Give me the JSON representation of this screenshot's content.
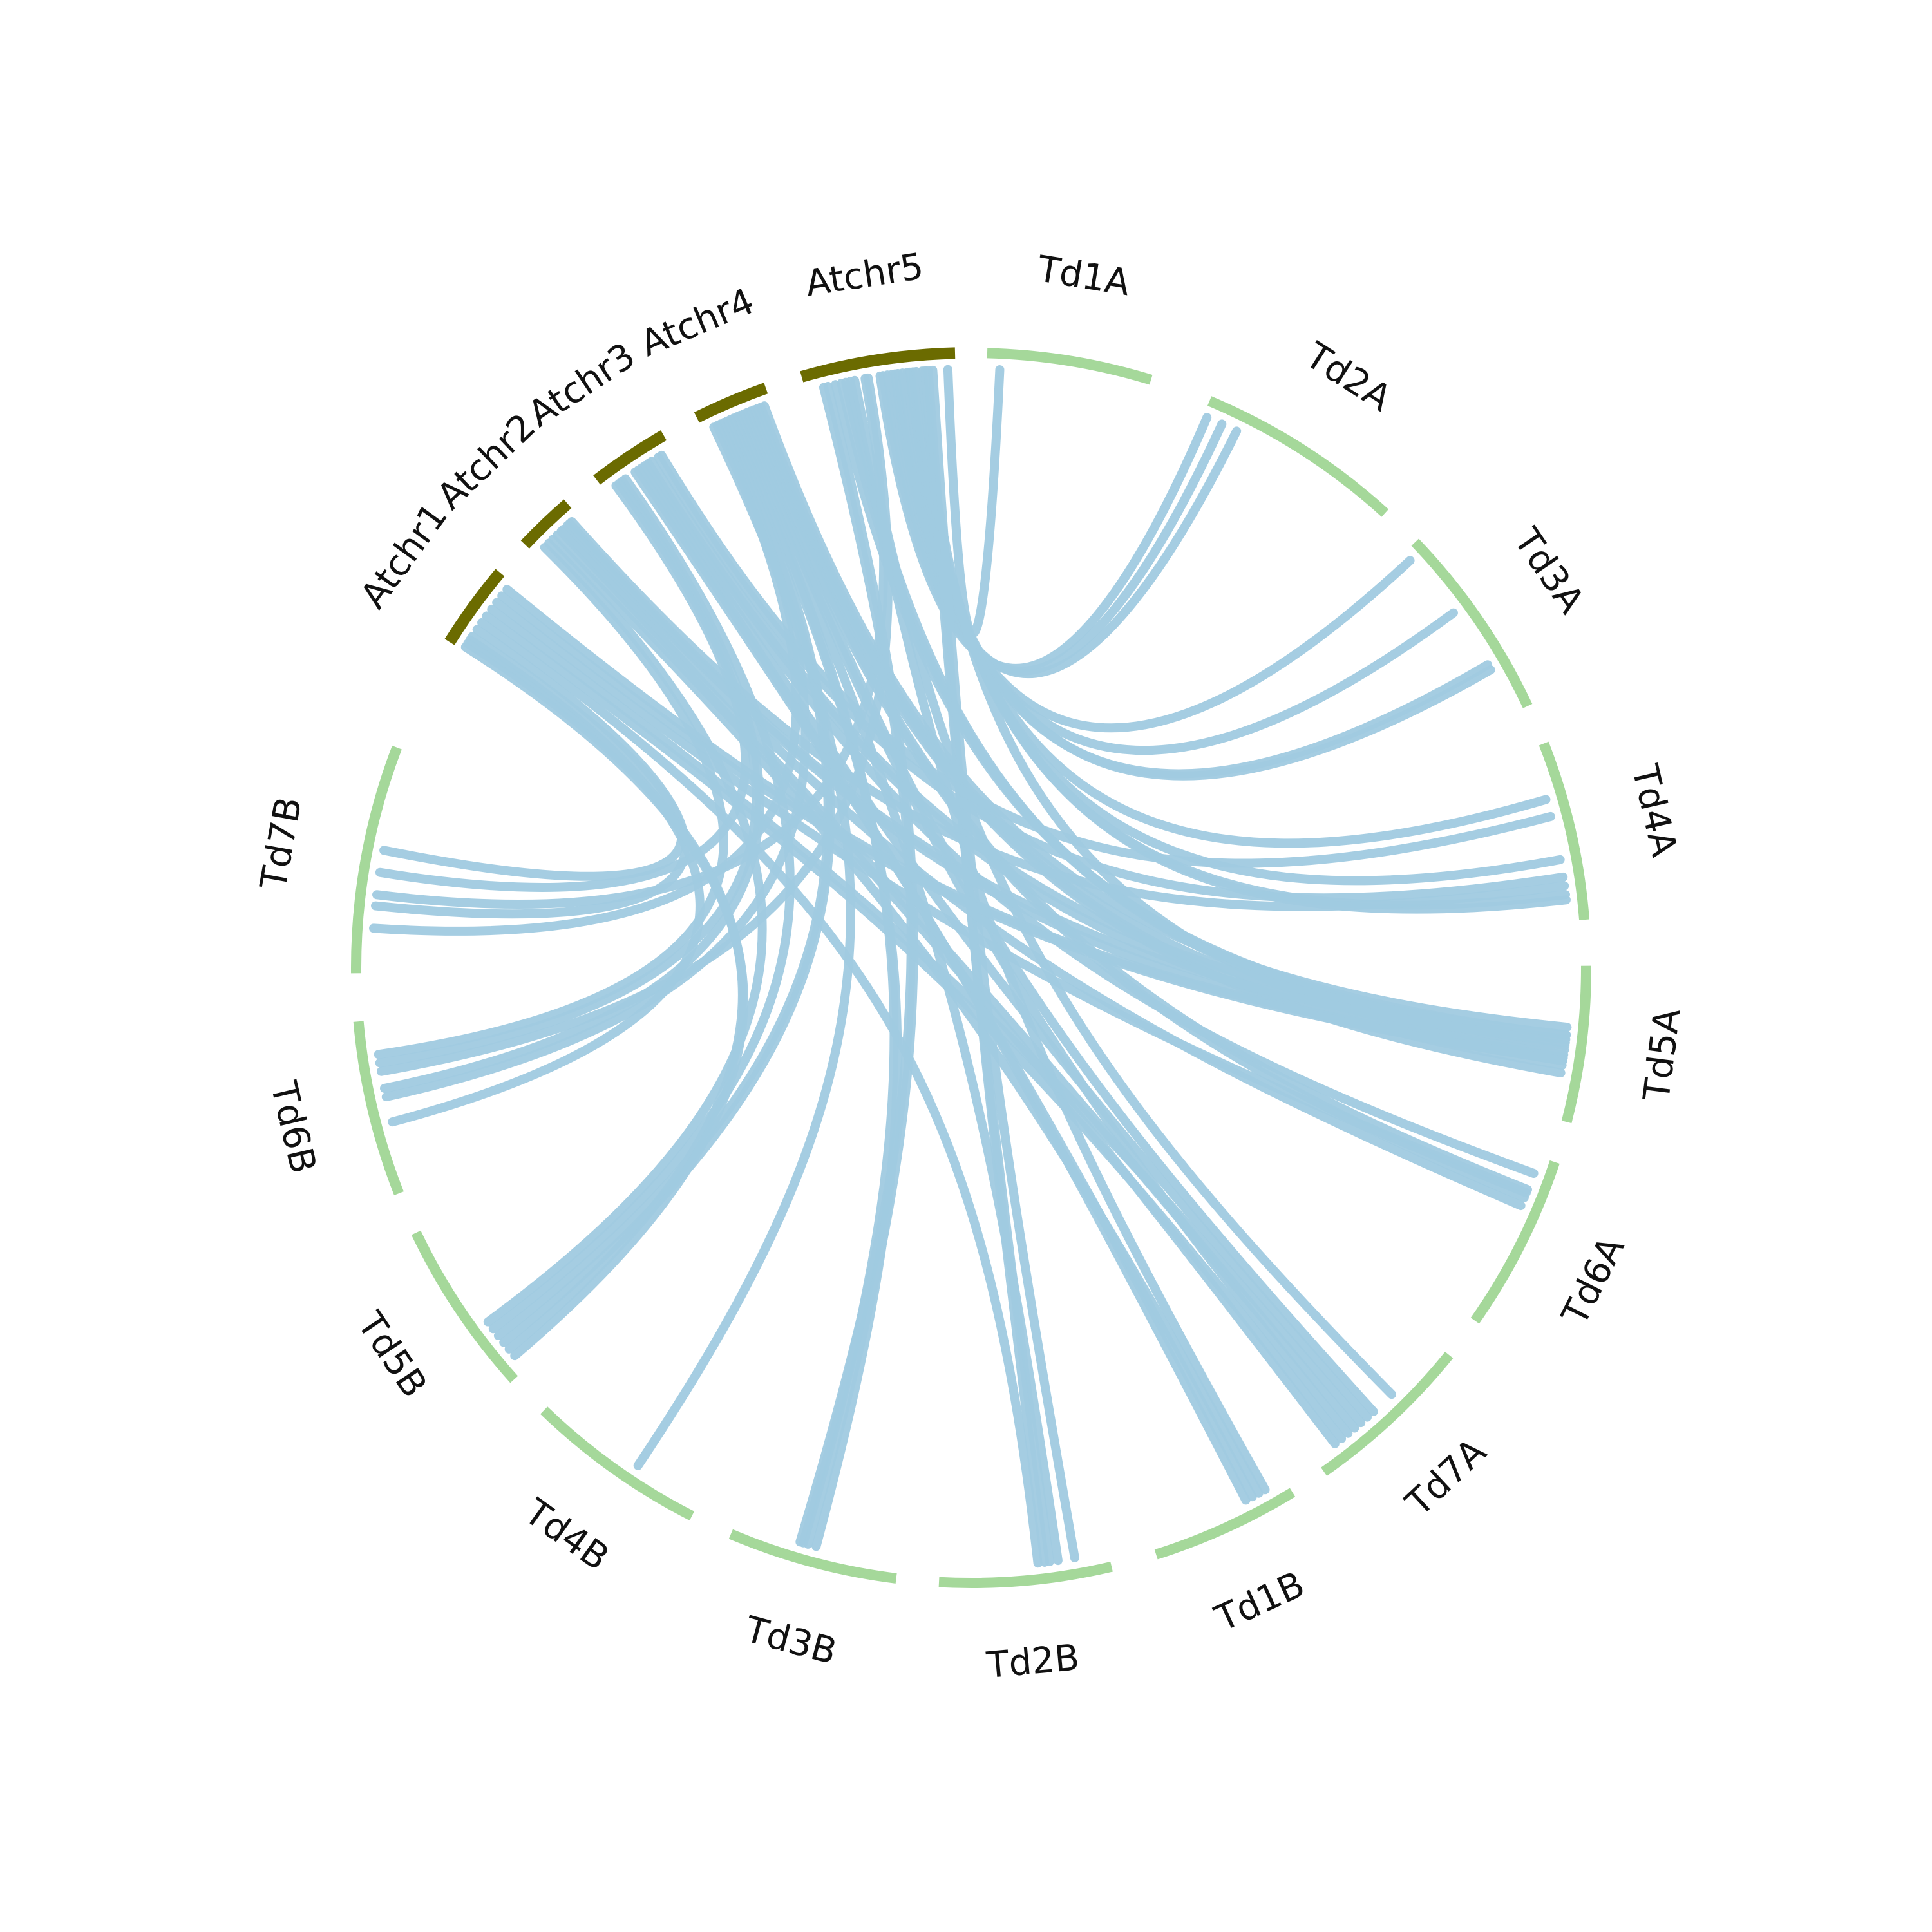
{
  "diagram": {
    "type": "circos",
    "colors": {
      "arabidopsis": "#6b6b00",
      "durum_wheat": "#a5d89a",
      "link": "#a0cae0",
      "label": "#111111",
      "background": "#ffffff"
    },
    "segments": [
      {
        "label": "Td1A",
        "group": "durum_wheat"
      },
      {
        "label": "Td2A",
        "group": "durum_wheat"
      },
      {
        "label": "Td3A",
        "group": "durum_wheat"
      },
      {
        "label": "Td4A",
        "group": "durum_wheat"
      },
      {
        "label": "Td5A",
        "group": "durum_wheat"
      },
      {
        "label": "Td6A",
        "group": "durum_wheat"
      },
      {
        "label": "Td7A",
        "group": "durum_wheat"
      },
      {
        "label": "Td1B",
        "group": "durum_wheat"
      },
      {
        "label": "Td2B",
        "group": "durum_wheat"
      },
      {
        "label": "Td3B",
        "group": "durum_wheat"
      },
      {
        "label": "Td4B",
        "group": "durum_wheat"
      },
      {
        "label": "Td5B",
        "group": "durum_wheat"
      },
      {
        "label": "Td6B",
        "group": "durum_wheat"
      },
      {
        "label": "Td7B",
        "group": "durum_wheat"
      },
      {
        "label": "Atchr1",
        "group": "arabidopsis"
      },
      {
        "label": "Atchr2",
        "group": "arabidopsis"
      },
      {
        "label": "Atchr3",
        "group": "arabidopsis"
      },
      {
        "label": "Atchr4",
        "group": "arabidopsis"
      },
      {
        "label": "Atchr5",
        "group": "arabidopsis"
      }
    ],
    "links": [
      {
        "from": "Atchr5",
        "fp": 0.95,
        "to": "Td1A",
        "tp": 0.08
      },
      {
        "from": "Atchr5",
        "fp": 0.5,
        "to": "Td2A",
        "tp": 0.02
      },
      {
        "from": "Atchr5",
        "fp": 0.52,
        "to": "Td2A",
        "tp": 0.1
      },
      {
        "from": "Atchr5",
        "fp": 0.55,
        "to": "Td2A",
        "tp": 0.18
      },
      {
        "from": "Atchr5",
        "fp": 0.58,
        "to": "Td3A",
        "tp": 0.05
      },
      {
        "from": "Atchr5",
        "fp": 0.6,
        "to": "Td3A",
        "tp": 0.4
      },
      {
        "from": "Atchr5",
        "fp": 0.62,
        "to": "Td3A",
        "tp": 0.72
      },
      {
        "from": "Atchr5",
        "fp": 0.65,
        "to": "Td3A",
        "tp": 0.75
      },
      {
        "from": "Atchr5",
        "fp": 0.68,
        "to": "Td4A",
        "tp": 0.3
      },
      {
        "from": "Atchr5",
        "fp": 0.7,
        "to": "Td4A",
        "tp": 0.65
      },
      {
        "from": "Atchr5",
        "fp": 0.72,
        "to": "Td4A",
        "tp": 0.85
      },
      {
        "from": "Atchr5",
        "fp": 0.74,
        "to": "Td4A",
        "tp": 0.88
      },
      {
        "from": "Atchr5",
        "fp": 0.2,
        "to": "Td5A",
        "tp": 0.45
      },
      {
        "from": "Atchr5",
        "fp": 0.24,
        "to": "Td5A",
        "tp": 0.48
      },
      {
        "from": "Atchr5",
        "fp": 0.27,
        "to": "Td5A",
        "tp": 0.52
      },
      {
        "from": "Atchr5",
        "fp": 0.78,
        "to": "Td5A",
        "tp": 0.6
      },
      {
        "from": "Atchr5",
        "fp": 0.8,
        "to": "Td2B",
        "tp": 0.35
      },
      {
        "from": "Atchr5",
        "fp": 0.82,
        "to": "Td2B",
        "tp": 0.38
      },
      {
        "from": "Atchr5",
        "fp": 0.85,
        "to": "Td2B",
        "tp": 0.2
      },
      {
        "from": "Atchr5",
        "fp": 0.3,
        "to": "Td1B",
        "tp": 0.15
      },
      {
        "from": "Atchr5",
        "fp": 0.33,
        "to": "Td7A",
        "tp": 0.4
      },
      {
        "from": "Atchr5",
        "fp": 0.15,
        "to": "Td3B",
        "tp": 0.55
      },
      {
        "from": "Atchr5",
        "fp": 0.12,
        "to": "Td3B",
        "tp": 0.6
      },
      {
        "from": "Atchr5",
        "fp": 0.4,
        "to": "Td7B",
        "tp": 0.35
      },
      {
        "from": "Atchr5",
        "fp": 0.42,
        "to": "Td6B",
        "tp": 0.7
      },
      {
        "from": "Atchr4",
        "fp": 0.9,
        "to": "Td5A",
        "tp": 0.4
      },
      {
        "from": "Atchr4",
        "fp": 0.85,
        "to": "Td5A",
        "tp": 0.55
      },
      {
        "from": "Atchr4",
        "fp": 0.8,
        "to": "Td5A",
        "tp": 0.65
      },
      {
        "from": "Atchr4",
        "fp": 0.75,
        "to": "Td5A",
        "tp": 0.7
      },
      {
        "from": "Atchr4",
        "fp": 0.7,
        "to": "Td6A",
        "tp": 0.2
      },
      {
        "from": "Atchr4",
        "fp": 0.65,
        "to": "Td6A",
        "tp": 0.25
      },
      {
        "from": "Atchr4",
        "fp": 0.6,
        "to": "Td7A",
        "tp": 0.55
      },
      {
        "from": "Atchr4",
        "fp": 0.55,
        "to": "Td7A",
        "tp": 0.75
      },
      {
        "from": "Atchr4",
        "fp": 0.5,
        "to": "Td2B",
        "tp": 0.3
      },
      {
        "from": "Atchr4",
        "fp": 0.45,
        "to": "Td3B",
        "tp": 0.58
      },
      {
        "from": "Atchr4",
        "fp": 0.4,
        "to": "Td3B",
        "tp": 0.5
      },
      {
        "from": "Atchr4",
        "fp": 0.35,
        "to": "Td5B",
        "tp": 0.2
      },
      {
        "from": "Atchr4",
        "fp": 0.3,
        "to": "Td5B",
        "tp": 0.25
      },
      {
        "from": "Atchr4",
        "fp": 0.25,
        "to": "Td6B",
        "tp": 0.55
      },
      {
        "from": "Atchr4",
        "fp": 0.2,
        "to": "Td7B",
        "tp": 0.2
      },
      {
        "from": "Atchr4",
        "fp": 0.15,
        "to": "Td4B",
        "tp": 0.4
      },
      {
        "from": "Atchr3",
        "fp": 0.85,
        "to": "Td4A",
        "tp": 0.4
      },
      {
        "from": "Atchr3",
        "fp": 0.8,
        "to": "Td4A",
        "tp": 0.75
      },
      {
        "from": "Atchr3",
        "fp": 0.7,
        "to": "Td5A",
        "tp": 0.45
      },
      {
        "from": "Atchr3",
        "fp": 0.65,
        "to": "Td5A",
        "tp": 0.58
      },
      {
        "from": "Atchr3",
        "fp": 0.6,
        "to": "Td6A",
        "tp": 0.1
      },
      {
        "from": "Atchr3",
        "fp": 0.55,
        "to": "Td7A",
        "tp": 0.6
      },
      {
        "from": "Atchr3",
        "fp": 0.5,
        "to": "Td1B",
        "tp": 0.3
      },
      {
        "from": "Atchr3",
        "fp": 0.45,
        "to": "Td1B",
        "tp": 0.25
      },
      {
        "from": "Atchr3",
        "fp": 0.3,
        "to": "Td5B",
        "tp": 0.3
      },
      {
        "from": "Atchr3",
        "fp": 0.25,
        "to": "Td6B",
        "tp": 0.6
      },
      {
        "from": "Atchr3",
        "fp": 0.2,
        "to": "Td6B",
        "tp": 0.75
      },
      {
        "from": "Atchr3",
        "fp": 0.15,
        "to": "Td7B",
        "tp": 0.45
      },
      {
        "from": "Atchr2",
        "fp": 0.85,
        "to": "Td4A",
        "tp": 0.8
      },
      {
        "from": "Atchr2",
        "fp": 0.8,
        "to": "Td5A",
        "tp": 0.5
      },
      {
        "from": "Atchr2",
        "fp": 0.75,
        "to": "Td5A",
        "tp": 0.62
      },
      {
        "from": "Atchr2",
        "fp": 0.65,
        "to": "Td6A",
        "tp": 0.3
      },
      {
        "from": "Atchr2",
        "fp": 0.6,
        "to": "Td7A",
        "tp": 0.7
      },
      {
        "from": "Atchr2",
        "fp": 0.5,
        "to": "Td7A",
        "tp": 0.85
      },
      {
        "from": "Atchr2",
        "fp": 0.4,
        "to": "Td1B",
        "tp": 0.2
      },
      {
        "from": "Atchr2",
        "fp": 0.3,
        "to": "Td5B",
        "tp": 0.35
      },
      {
        "from": "Atchr2",
        "fp": 0.2,
        "to": "Td6B",
        "tp": 0.8
      },
      {
        "from": "Atchr1",
        "fp": 0.9,
        "to": "Td5A",
        "tp": 0.6
      },
      {
        "from": "Atchr1",
        "fp": 0.8,
        "to": "Td5A",
        "tp": 0.62
      },
      {
        "from": "Atchr1",
        "fp": 0.7,
        "to": "Td6A",
        "tp": 0.22
      },
      {
        "from": "Atchr1",
        "fp": 0.6,
        "to": "Td7A",
        "tp": 0.65
      },
      {
        "from": "Atchr1",
        "fp": 0.5,
        "to": "Td7A",
        "tp": 0.8
      },
      {
        "from": "Atchr1",
        "fp": 0.4,
        "to": "Td2B",
        "tp": 0.42
      },
      {
        "from": "Atchr1",
        "fp": 0.3,
        "to": "Td7B",
        "tp": 0.3
      },
      {
        "from": "Atchr1",
        "fp": 0.2,
        "to": "Td7B",
        "tp": 0.55
      },
      {
        "from": "Atchr1",
        "fp": 0.15,
        "to": "Td6B",
        "tp": 0.4
      },
      {
        "from": "Atchr1",
        "fp": 0.1,
        "to": "Td5B",
        "tp": 0.15
      },
      {
        "from": "Atchr1",
        "fp": 0.05,
        "to": "Td5B",
        "tp": 0.1
      }
    ]
  }
}
